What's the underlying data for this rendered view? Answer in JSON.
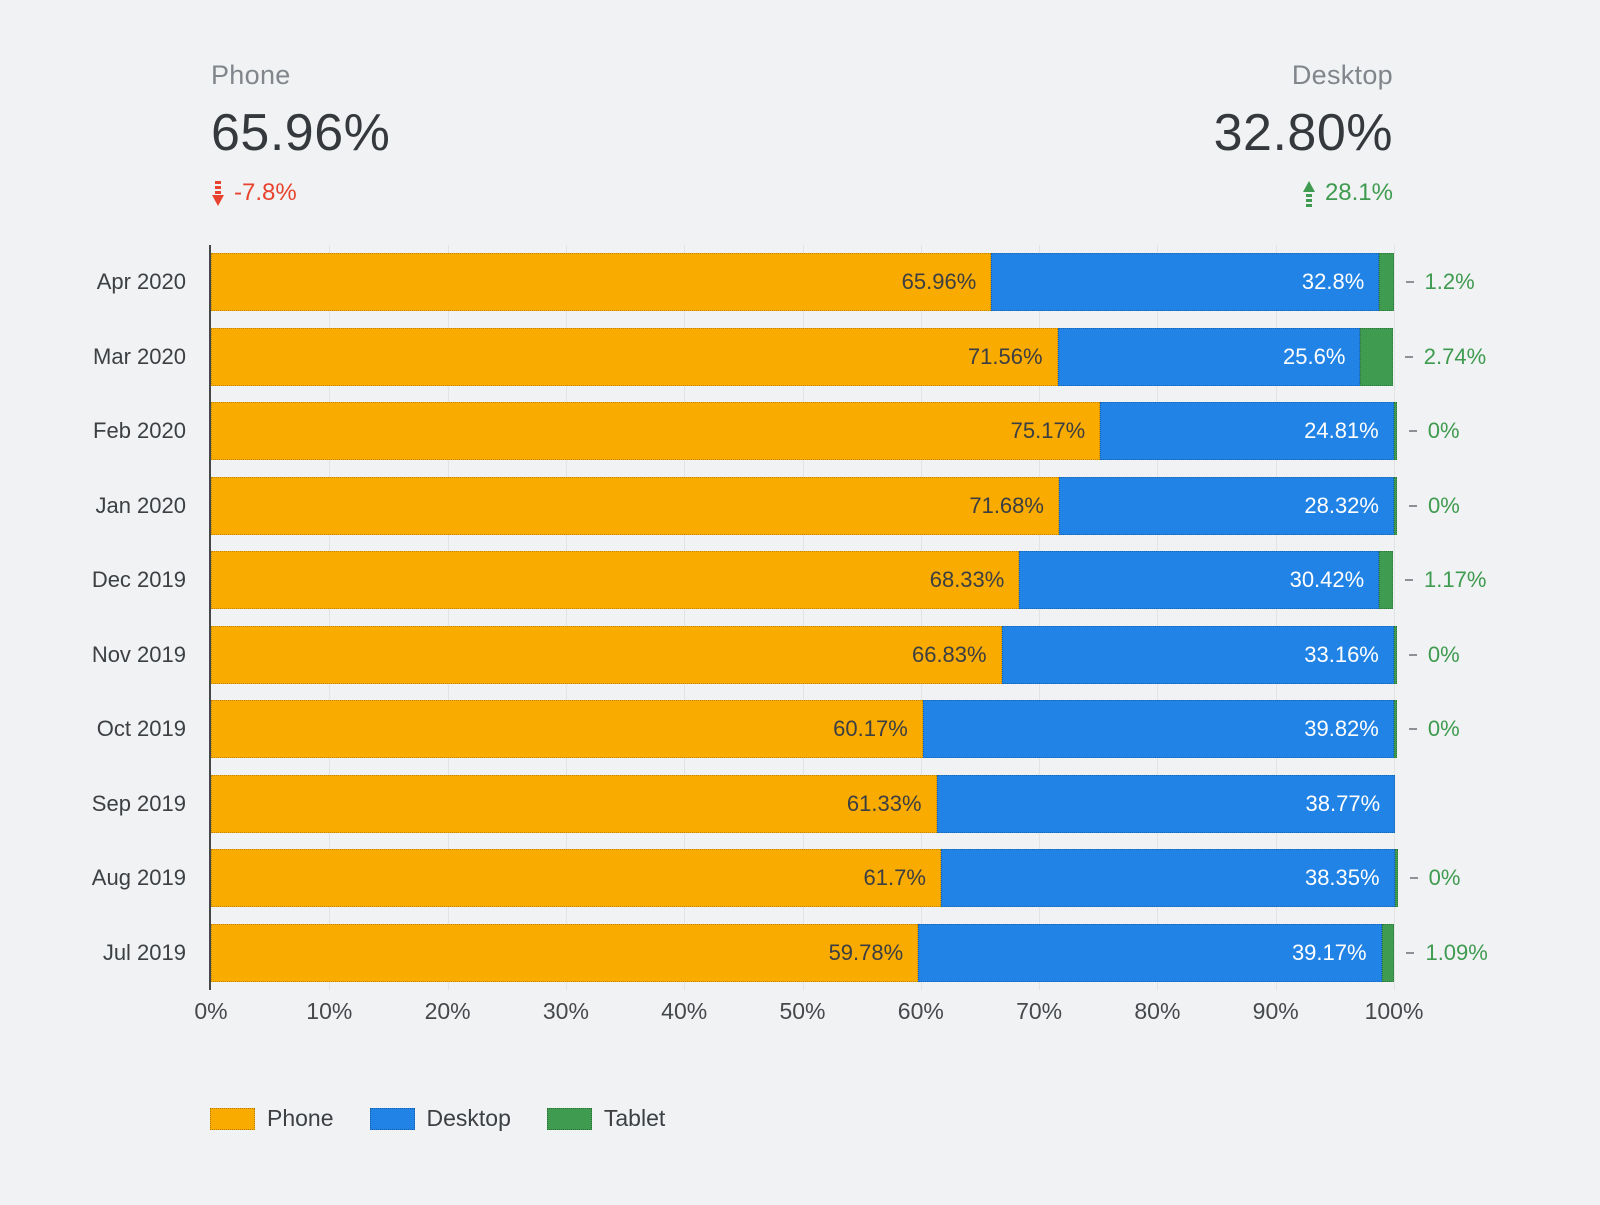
{
  "summary": {
    "phone": {
      "label": "Phone",
      "value": "65.96%",
      "delta": "-7.8%",
      "direction": "down"
    },
    "desktop": {
      "label": "Desktop",
      "value": "32.80%",
      "delta": "28.1%",
      "direction": "up"
    }
  },
  "colors": {
    "phone": "#F9AB00",
    "desktop": "#2083E5",
    "tablet": "#3E9B4F",
    "negative": "#E8432E",
    "positive": "#3E9B4F",
    "phone_bar_text": "#3B3E42",
    "desktop_bar_text": "#FFFFFF",
    "tablet_value_text": "#3E9B4F"
  },
  "chart_data": {
    "type": "bar",
    "orientation": "horizontal",
    "stacked": true,
    "grid": true,
    "legend_position": "bottom",
    "xlim": [
      0,
      100
    ],
    "categories": [
      "Apr 2020",
      "Mar 2020",
      "Feb 2020",
      "Jan 2020",
      "Dec 2019",
      "Nov 2019",
      "Oct 2019",
      "Sep 2019",
      "Aug 2019",
      "Jul 2019"
    ],
    "series": [
      {
        "name": "Phone",
        "color": "#F9AB00",
        "values": [
          65.96,
          71.56,
          75.17,
          71.68,
          68.33,
          66.83,
          60.17,
          61.33,
          61.7,
          59.78
        ],
        "labels": [
          "65.96%",
          "71.56%",
          "75.17%",
          "71.68%",
          "68.33%",
          "66.83%",
          "60.17%",
          "61.33%",
          "61.7%",
          "59.78%"
        ]
      },
      {
        "name": "Desktop",
        "color": "#2083E5",
        "values": [
          32.8,
          25.6,
          24.81,
          28.32,
          30.42,
          33.16,
          39.82,
          38.77,
          38.35,
          39.17
        ],
        "labels": [
          "32.8%",
          "25.6%",
          "24.81%",
          "28.32%",
          "30.42%",
          "33.16%",
          "39.82%",
          "38.77%",
          "38.35%",
          "39.17%"
        ]
      },
      {
        "name": "Tablet",
        "color": "#3E9B4F",
        "values": [
          1.2,
          2.74,
          0,
          0,
          1.17,
          0,
          0,
          null,
          0,
          1.09
        ],
        "labels": [
          "1.2%",
          "2.74%",
          "0%",
          "0%",
          "1.17%",
          "0%",
          "0%",
          "",
          "0%",
          "1.09%"
        ]
      }
    ],
    "x_ticks": [
      "0%",
      "10%",
      "20%",
      "30%",
      "40%",
      "50%",
      "60%",
      "70%",
      "80%",
      "90%",
      "100%"
    ]
  }
}
